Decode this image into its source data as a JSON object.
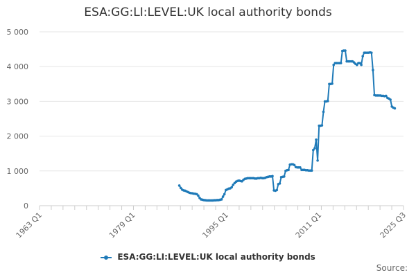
{
  "chart_data": {
    "type": "line",
    "title": "ESA:GG:LI:LEVEL:UK local authority bonds",
    "xlabel": "",
    "ylabel": "",
    "x_ticks": [
      "1963 Q1",
      "1979 Q1",
      "1995 Q1",
      "2011 Q1",
      "2025 Q3"
    ],
    "y_ticks": [
      "0",
      "1 000",
      "2 000",
      "3 000",
      "4 000",
      "5 000"
    ],
    "ylim": [
      0,
      5000
    ],
    "xlim": [
      1963.0,
      2025.5
    ],
    "grid": "horizontal",
    "legend_position": "bottom",
    "series": [
      {
        "name": "ESA:GG:LI:LEVEL:UK local authority bonds",
        "color": "#1f7ab8",
        "points": [
          [
            1987.0,
            580
          ],
          [
            1987.25,
            510
          ],
          [
            1987.5,
            460
          ],
          [
            1987.75,
            440
          ],
          [
            1988.0,
            430
          ],
          [
            1988.25,
            410
          ],
          [
            1988.5,
            390
          ],
          [
            1988.75,
            370
          ],
          [
            1989.0,
            360
          ],
          [
            1989.25,
            355
          ],
          [
            1989.5,
            345
          ],
          [
            1989.75,
            340
          ],
          [
            1990.0,
            330
          ],
          [
            1990.25,
            290
          ],
          [
            1990.5,
            220
          ],
          [
            1990.75,
            180
          ],
          [
            1991.0,
            170
          ],
          [
            1991.25,
            160
          ],
          [
            1991.5,
            155
          ],
          [
            1991.75,
            150
          ],
          [
            1992.0,
            150
          ],
          [
            1992.25,
            150
          ],
          [
            1992.5,
            150
          ],
          [
            1992.75,
            150
          ],
          [
            1993.0,
            155
          ],
          [
            1993.25,
            155
          ],
          [
            1993.5,
            160
          ],
          [
            1993.75,
            160
          ],
          [
            1994.0,
            170
          ],
          [
            1994.25,
            180
          ],
          [
            1994.5,
            260
          ],
          [
            1994.75,
            330
          ],
          [
            1995.0,
            450
          ],
          [
            1995.25,
            470
          ],
          [
            1995.5,
            490
          ],
          [
            1995.75,
            500
          ],
          [
            1996.0,
            530
          ],
          [
            1996.25,
            600
          ],
          [
            1996.5,
            650
          ],
          [
            1996.75,
            690
          ],
          [
            1997.0,
            710
          ],
          [
            1997.25,
            720
          ],
          [
            1997.5,
            710
          ],
          [
            1997.75,
            700
          ],
          [
            1998.0,
            740
          ],
          [
            1998.25,
            770
          ],
          [
            1998.5,
            780
          ],
          [
            1998.75,
            790
          ],
          [
            1999.0,
            790
          ],
          [
            1999.25,
            790
          ],
          [
            1999.5,
            790
          ],
          [
            1999.75,
            790
          ],
          [
            2000.0,
            780
          ],
          [
            2000.25,
            780
          ],
          [
            2000.5,
            790
          ],
          [
            2000.75,
            790
          ],
          [
            2001.0,
            800
          ],
          [
            2001.25,
            790
          ],
          [
            2001.5,
            790
          ],
          [
            2001.75,
            800
          ],
          [
            2002.0,
            820
          ],
          [
            2002.25,
            830
          ],
          [
            2002.5,
            840
          ],
          [
            2002.75,
            840
          ],
          [
            2003.0,
            850
          ],
          [
            2003.25,
            440
          ],
          [
            2003.5,
            430
          ],
          [
            2003.75,
            450
          ],
          [
            2004.0,
            620
          ],
          [
            2004.25,
            640
          ],
          [
            2004.5,
            820
          ],
          [
            2004.75,
            830
          ],
          [
            2005.0,
            840
          ],
          [
            2005.25,
            1000
          ],
          [
            2005.5,
            1020
          ],
          [
            2005.75,
            1030
          ],
          [
            2006.0,
            1180
          ],
          [
            2006.25,
            1190
          ],
          [
            2006.5,
            1190
          ],
          [
            2006.75,
            1170
          ],
          [
            2007.0,
            1110
          ],
          [
            2007.25,
            1100
          ],
          [
            2007.5,
            1100
          ],
          [
            2007.75,
            1100
          ],
          [
            2008.0,
            1030
          ],
          [
            2008.25,
            1030
          ],
          [
            2008.5,
            1030
          ],
          [
            2008.75,
            1020
          ],
          [
            2009.0,
            1020
          ],
          [
            2009.25,
            1010
          ],
          [
            2009.5,
            1010
          ],
          [
            2009.75,
            1010
          ],
          [
            2010.0,
            1600
          ],
          [
            2010.25,
            1650
          ],
          [
            2010.5,
            1900
          ],
          [
            2010.75,
            1300
          ],
          [
            2011.0,
            2300
          ],
          [
            2011.25,
            2300
          ],
          [
            2011.5,
            2310
          ],
          [
            2011.75,
            2700
          ],
          [
            2012.0,
            3000
          ],
          [
            2012.25,
            3000
          ],
          [
            2012.5,
            3010
          ],
          [
            2012.75,
            3500
          ],
          [
            2013.0,
            3500
          ],
          [
            2013.25,
            3510
          ],
          [
            2013.5,
            4050
          ],
          [
            2013.75,
            4100
          ],
          [
            2014.0,
            4100
          ],
          [
            2014.25,
            4100
          ],
          [
            2014.5,
            4100
          ],
          [
            2014.75,
            4100
          ],
          [
            2015.0,
            4450
          ],
          [
            2015.25,
            4460
          ],
          [
            2015.5,
            4460
          ],
          [
            2015.75,
            4150
          ],
          [
            2016.0,
            4150
          ],
          [
            2016.25,
            4150
          ],
          [
            2016.5,
            4150
          ],
          [
            2016.75,
            4150
          ],
          [
            2017.0,
            4120
          ],
          [
            2017.25,
            4080
          ],
          [
            2017.5,
            4050
          ],
          [
            2017.75,
            4100
          ],
          [
            2018.0,
            4100
          ],
          [
            2018.25,
            4050
          ],
          [
            2018.5,
            4300
          ],
          [
            2018.75,
            4400
          ],
          [
            2019.0,
            4400
          ],
          [
            2019.25,
            4400
          ],
          [
            2019.5,
            4400
          ],
          [
            2019.75,
            4410
          ],
          [
            2020.0,
            4400
          ],
          [
            2020.25,
            3900
          ],
          [
            2020.5,
            3180
          ],
          [
            2020.75,
            3170
          ],
          [
            2021.0,
            3170
          ],
          [
            2021.25,
            3170
          ],
          [
            2021.5,
            3170
          ],
          [
            2021.75,
            3160
          ],
          [
            2022.0,
            3160
          ],
          [
            2022.25,
            3150
          ],
          [
            2022.5,
            3160
          ],
          [
            2022.75,
            3100
          ],
          [
            2023.0,
            3080
          ],
          [
            2023.25,
            3050
          ],
          [
            2023.5,
            2850
          ],
          [
            2023.75,
            2820
          ],
          [
            2024.0,
            2800
          ]
        ]
      }
    ]
  },
  "legend": {
    "label": "ESA:GG:LI:LEVEL:UK local authority bonds"
  },
  "source_label": "Source:"
}
